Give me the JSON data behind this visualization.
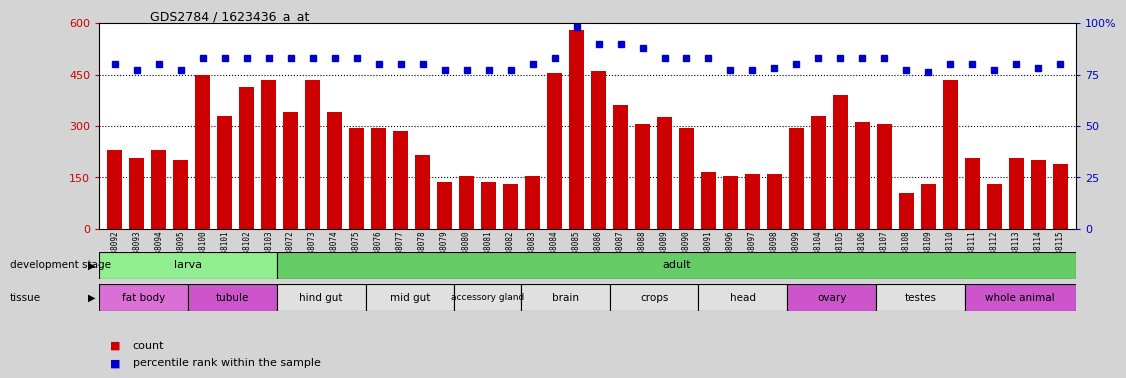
{
  "title": "GDS2784 / 1623436_a_at",
  "samples": [
    "GSM188092",
    "GSM188093",
    "GSM188094",
    "GSM188095",
    "GSM188100",
    "GSM188101",
    "GSM188102",
    "GSM188103",
    "GSM188072",
    "GSM188073",
    "GSM188074",
    "GSM188075",
    "GSM188076",
    "GSM188077",
    "GSM188078",
    "GSM188079",
    "GSM188080",
    "GSM188081",
    "GSM188082",
    "GSM188083",
    "GSM188084",
    "GSM188085",
    "GSM188086",
    "GSM188087",
    "GSM188088",
    "GSM188089",
    "GSM188090",
    "GSM188091",
    "GSM188096",
    "GSM188097",
    "GSM188098",
    "GSM188099",
    "GSM188104",
    "GSM188105",
    "GSM188106",
    "GSM188107",
    "GSM188108",
    "GSM188109",
    "GSM188110",
    "GSM188111",
    "GSM188112",
    "GSM188113",
    "GSM188114",
    "GSM188115"
  ],
  "counts": [
    230,
    205,
    230,
    200,
    450,
    330,
    415,
    435,
    340,
    435,
    340,
    295,
    295,
    285,
    215,
    135,
    155,
    135,
    130,
    155,
    455,
    580,
    460,
    360,
    305,
    325,
    295,
    165,
    155,
    160,
    160,
    295,
    330,
    390,
    310,
    305,
    105,
    130,
    435,
    205,
    130,
    205,
    200,
    190
  ],
  "percentiles": [
    80,
    77,
    80,
    77,
    83,
    83,
    83,
    83,
    83,
    83,
    83,
    83,
    80,
    80,
    80,
    77,
    77,
    77,
    77,
    80,
    83,
    98,
    90,
    90,
    88,
    83,
    83,
    83,
    77,
    77,
    78,
    80,
    83,
    83,
    83,
    83,
    77,
    76,
    80,
    80,
    77,
    80,
    78,
    80
  ],
  "ylim_left": [
    0,
    600
  ],
  "ylim_right": [
    0,
    100
  ],
  "yticks_left": [
    0,
    150,
    300,
    450,
    600
  ],
  "yticks_right": [
    0,
    25,
    50,
    75,
    100
  ],
  "bar_color": "#cc0000",
  "dot_color": "#0000cc",
  "background_color": "#d4d4d4",
  "plot_bg_color": "#ffffff",
  "dev_stage_groups": [
    {
      "label": "larva",
      "start": 0,
      "end": 8,
      "color": "#90ee90"
    },
    {
      "label": "adult",
      "start": 8,
      "end": 44,
      "color": "#66cc66"
    }
  ],
  "tissue_groups": [
    {
      "label": "fat body",
      "start": 0,
      "end": 4,
      "color": "#da70d6"
    },
    {
      "label": "tubule",
      "start": 4,
      "end": 8,
      "color": "#cc55cc"
    },
    {
      "label": "hind gut",
      "start": 8,
      "end": 12,
      "color": "#e0e0e0"
    },
    {
      "label": "mid gut",
      "start": 12,
      "end": 16,
      "color": "#e0e0e0"
    },
    {
      "label": "accessory gland",
      "start": 16,
      "end": 19,
      "color": "#e0e0e0"
    },
    {
      "label": "brain",
      "start": 19,
      "end": 23,
      "color": "#e0e0e0"
    },
    {
      "label": "crops",
      "start": 23,
      "end": 27,
      "color": "#e0e0e0"
    },
    {
      "label": "head",
      "start": 27,
      "end": 31,
      "color": "#e0e0e0"
    },
    {
      "label": "ovary",
      "start": 31,
      "end": 35,
      "color": "#cc55cc"
    },
    {
      "label": "testes",
      "start": 35,
      "end": 39,
      "color": "#e0e0e0"
    },
    {
      "label": "whole animal",
      "start": 39,
      "end": 44,
      "color": "#cc55cc"
    }
  ],
  "legend_count_color": "#cc0000",
  "legend_percentile_color": "#0000cc",
  "legend_count_label": "count",
  "legend_percentile_label": "percentile rank within the sample",
  "xlabel_dev": "development stage",
  "xlabel_tissue": "tissue"
}
